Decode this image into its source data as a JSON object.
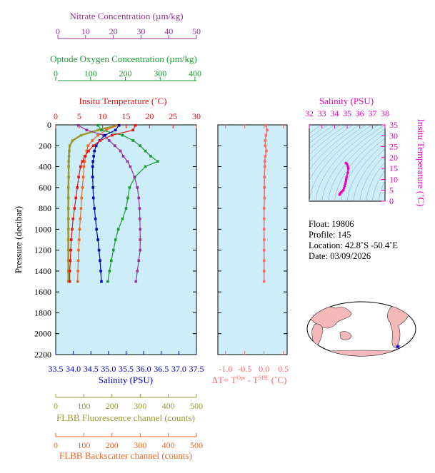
{
  "colors": {
    "nitrate": "#993399",
    "oxygen": "#1a9a33",
    "temperature": "#ee1111",
    "salinity": "#0000bb",
    "fluorescence": "#999933",
    "backscatter": "#ee6622",
    "delta": "#ff6666",
    "ts": "#ee00bb",
    "plot_bg": "#cdeef8",
    "land": "#f4b8b8"
  },
  "labels": {
    "nitrate_axis": "Nitrate Concentration (µm/kg)",
    "oxygen_axis": "Optode Oxygen Concentration (µm/kg)",
    "temperature_axis": "Insitu Temperature (˚C)",
    "pressure_axis": "Pressure (decibar)",
    "salinity_axis": "Salinity (PSU)",
    "fluorescence_axis": "FLBB Fluorescence channel (counts)",
    "backscatter_axis": "FLBB Backscatter channel (counts)",
    "delta_axis": "ΔT= T",
    "delta_sup1": "Opt",
    "delta_mid": " - T",
    "delta_sup2": "SBE",
    "delta_unit": " (˚C)",
    "ts_top_axis": "Salinity (PSU)",
    "ts_right_axis": "Insitu Temperature (˚C)"
  },
  "info": {
    "float": "Float:  19806",
    "profile": "Profile:  145",
    "location": "Location:  42.8˚S  -50.4˚E",
    "date": "Date:  03/09/2026"
  },
  "axes": {
    "nitrate_ticks": [
      "0",
      "10",
      "20",
      "30",
      "40",
      "50"
    ],
    "oxygen_ticks": [
      "0",
      "100",
      "200",
      "300",
      "400"
    ],
    "temperature_ticks": [
      "0",
      "5",
      "10",
      "15",
      "20",
      "25",
      "30"
    ],
    "pressure_ticks": [
      "0",
      "200",
      "400",
      "600",
      "800",
      "1000",
      "1200",
      "1400",
      "1600",
      "1800",
      "2000",
      "2200"
    ],
    "salinity_ticks": [
      "33.5",
      "34.0",
      "34.5",
      "35.0",
      "35.5",
      "36.0",
      "36.5",
      "37.0",
      "37.5"
    ],
    "fluorescence_ticks": [
      "0",
      "100",
      "200",
      "300",
      "400",
      "500"
    ],
    "backscatter_ticks": [
      "0",
      "100",
      "200",
      "300",
      "400",
      "500"
    ],
    "delta_ticks": [
      "-1.0",
      "-0.5",
      "0.0",
      "0.5"
    ],
    "ts_salinity_ticks": [
      "32",
      "33",
      "34",
      "35",
      "36",
      "37",
      "38"
    ],
    "ts_temperature_ticks": [
      "0",
      "5",
      "10",
      "15",
      "20",
      "25",
      "30",
      "35"
    ]
  },
  "chart_data": [
    {
      "type": "line",
      "pressure": [
        5,
        50,
        100,
        150,
        200,
        250,
        300,
        350,
        400,
        500,
        600,
        700,
        800,
        900,
        1000,
        1100,
        1200,
        1300,
        1400,
        1500
      ],
      "ylim": [
        2200,
        0
      ],
      "series": [
        {
          "name": "Insitu Temperature",
          "axis": "temperature",
          "xlim": [
            0,
            30
          ],
          "values": [
            17,
            16.5,
            12,
            9.5,
            8,
            7,
            6.2,
            5.7,
            5.3,
            4.9,
            4.6,
            4.3,
            4.0,
            3.7,
            3.5,
            3.3,
            3.2,
            3.1,
            3.0,
            3.0
          ]
        },
        {
          "name": "Salinity",
          "axis": "salinity",
          "xlim": [
            33.5,
            37.5
          ],
          "values": [
            35.3,
            35.2,
            34.9,
            34.75,
            34.65,
            34.6,
            34.58,
            34.56,
            34.55,
            34.55,
            34.56,
            34.57,
            34.6,
            34.63,
            34.66,
            34.7,
            34.73,
            34.76,
            34.78,
            34.8
          ]
        },
        {
          "name": "Nitrate Concentration",
          "axis": "nitrate",
          "xlim": [
            0,
            50
          ],
          "values": [
            8,
            11,
            17,
            19,
            21,
            23,
            24,
            25.5,
            26.5,
            28,
            29,
            29.5,
            29.8,
            29.9,
            30,
            30,
            30,
            29.5,
            29,
            28.5
          ]
        },
        {
          "name": "Optode Oxygen Concentration",
          "axis": "oxygen",
          "xlim": [
            0,
            400
          ],
          "values": [
            120,
            130,
            190,
            220,
            240,
            255,
            270,
            290,
            255,
            225,
            210,
            205,
            200,
            190,
            178,
            170,
            164,
            158,
            153,
            148
          ]
        },
        {
          "name": "FLBB Fluorescence",
          "axis": "fluorescence",
          "xlim": [
            0,
            500
          ],
          "values": [
            220,
            150,
            90,
            60,
            50,
            48,
            47,
            46,
            46,
            46,
            45,
            45,
            45,
            45,
            45,
            45,
            45,
            45,
            45,
            45
          ]
        },
        {
          "name": "FLBB Backscatter",
          "axis": "backscatter",
          "xlim": [
            0,
            500
          ],
          "values": [
            220,
            180,
            150,
            130,
            115,
            110,
            106,
            103,
            100,
            98,
            95,
            92,
            90,
            87,
            85,
            83,
            81,
            80,
            79,
            78
          ]
        }
      ]
    },
    {
      "type": "scatter",
      "name": "delta_temperature",
      "xlim": [
        -1.2,
        0.6
      ],
      "ylim": [
        2200,
        0
      ],
      "pressure": [
        5,
        50,
        100,
        150,
        200,
        250,
        300,
        350,
        400,
        500,
        600,
        700,
        800,
        900,
        1000,
        1100,
        1200,
        1300,
        1400,
        1500
      ],
      "values": [
        0.05,
        0.08,
        0.05,
        0.03,
        0.03,
        0.06,
        0.03,
        0.02,
        0.02,
        0.01,
        0.01,
        0.01,
        0.0,
        0.0,
        0.0,
        0.0,
        0.0,
        0.0,
        0.0,
        0.0
      ]
    },
    {
      "type": "line",
      "name": "ts_diagram",
      "xlim": [
        32,
        38
      ],
      "ylim": [
        0,
        35
      ],
      "salinity": [
        34.4,
        34.45,
        34.5,
        34.6,
        34.7,
        34.75,
        34.8,
        34.85,
        34.9,
        34.92,
        34.95,
        35.05,
        35.1,
        35.05,
        35.0,
        34.9
      ],
      "temperature": [
        3,
        3.5,
        4,
        4.5,
        5,
        6,
        7,
        8,
        9,
        10,
        11,
        13,
        15,
        16,
        17,
        17.5
      ]
    },
    {
      "type": "map",
      "name": "float_location",
      "longitude": -50.4,
      "latitude": -42.8
    }
  ]
}
